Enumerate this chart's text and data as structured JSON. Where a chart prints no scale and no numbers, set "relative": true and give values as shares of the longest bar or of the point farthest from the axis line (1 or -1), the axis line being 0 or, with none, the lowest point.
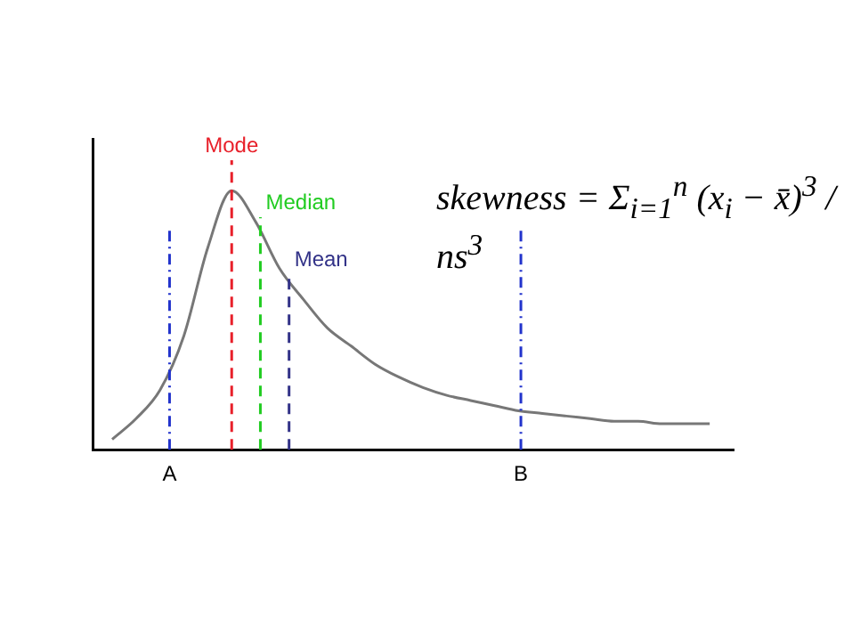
{
  "chart_data": {
    "type": "line",
    "relative": true,
    "grid": false,
    "legend": false,
    "marker": "none",
    "line_style": "solid",
    "categories": [
      null,
      null,
      null,
      null,
      null,
      null,
      null,
      null,
      null,
      null,
      null,
      null,
      null,
      null,
      null,
      null,
      null,
      null,
      null,
      null,
      null,
      null,
      null,
      null,
      null,
      null
    ],
    "series": [
      {
        "color": "#777777",
        "values": [
          0.04,
          0.12,
          0.23,
          0.44,
          0.78,
          1,
          0.88,
          0.7,
          0.58,
          0.47,
          0.4,
          0.33,
          0.28,
          0.24,
          0.21,
          0.19,
          0.17,
          0.15,
          0.14,
          0.13,
          0.12,
          0.11,
          0.11,
          0.1,
          0.1,
          0.1
        ]
      }
    ],
    "annotations": [
      "skewness = Σ$_{i=1}$$^{n}$ (x$_{i}$ − x̄)$^{3}$ / ns$^{3}$",
      "A",
      "Mode",
      "Median",
      "Mean",
      "B"
    ]
  }
}
